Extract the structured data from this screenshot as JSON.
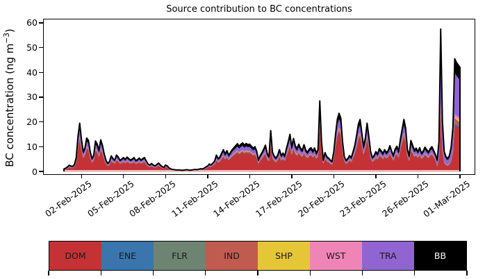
{
  "chart_data": {
    "type": "stacked_area",
    "title": "Source contribution to BC concentrations",
    "ylabel_text": "BC concentration (ng m⁻³)",
    "ylabel_parts": {
      "pre": "BC concentration (ng m",
      "sup": "−3",
      "post": ")"
    },
    "xlabel": "",
    "background_color": "#ffffff",
    "axis_color": "#000000",
    "envelope_line_color": "#000000",
    "baseline_strip_color": "#f2d7d9",
    "y_ticks": [
      0,
      10,
      20,
      30,
      40,
      50,
      60
    ],
    "ylim": [
      -1.4,
      61.7
    ],
    "grid": false,
    "x_start": "2025-01-31 18:00",
    "x_step_hours": 3,
    "x_tick_labels": [
      "02-Feb-2025",
      "05-Feb-2025",
      "08-Feb-2025",
      "11-Feb-2025",
      "14-Feb-2025",
      "17-Feb-2025",
      "20-Feb-2025",
      "23-Feb-2025",
      "26-Feb-2025",
      "01-Mar-2025"
    ],
    "x_tick_indices": [
      10,
      34,
      58,
      82,
      106,
      130,
      154,
      178,
      202,
      226
    ],
    "legend_position": "bottom-bar",
    "series_note": "Stacked bottom-to-top in listed order; each series value = fraction × total at that timestamp (fractions read from band thicknesses).",
    "series": [
      {
        "name": "DOM",
        "color": "#c43236",
        "text_color": "#1a1a1a",
        "fraction": 0.67
      },
      {
        "name": "ENE",
        "color": "#3a75ad",
        "text_color": "#1a1a1a",
        "fraction": 0.01
      },
      {
        "name": "FLR",
        "color": "#6d8472",
        "text_color": "#1a1a1a",
        "fraction": 0.015
      },
      {
        "name": "IND",
        "color": "#c05b50",
        "text_color": "#1a1a1a",
        "fraction": 0.03
      },
      {
        "name": "SHP",
        "color": "#e5c636",
        "text_color": "#1a1a1a",
        "fraction": 0.015
      },
      {
        "name": "WST",
        "color": "#ef85b6",
        "text_color": "#1a1a1a",
        "fraction": 0.025
      },
      {
        "name": "TRA",
        "color": "#9065d2",
        "text_color": "#1a1a1a",
        "fraction": 0.145
      },
      {
        "name": "BB",
        "color": "#000000",
        "text_color": "#ffffff",
        "fraction": 0.09
      }
    ],
    "fraction_overrides": [
      {
        "from_index": 213,
        "to_index": 226,
        "fractions": [
          0.42,
          0.01,
          0.015,
          0.03,
          0.015,
          0.025,
          0.365,
          0.12
        ]
      }
    ],
    "total": [
      1.0,
      1.3,
      1.8,
      2.5,
      2.2,
      2.0,
      2.8,
      5.5,
      14.0,
      19.5,
      13.0,
      8.0,
      9.5,
      13.5,
      12.5,
      8.0,
      5.2,
      6.5,
      12.3,
      11.0,
      8.5,
      12.8,
      10.5,
      7.0,
      4.5,
      3.2,
      4.0,
      6.3,
      5.2,
      4.6,
      6.6,
      5.8,
      4.5,
      5.0,
      5.6,
      4.8,
      5.8,
      5.2,
      4.6,
      5.0,
      5.6,
      4.4,
      4.8,
      5.4,
      4.6,
      5.2,
      5.6,
      4.2,
      3.0,
      2.6,
      3.2,
      2.6,
      2.2,
      2.8,
      3.4,
      2.6,
      2.0,
      1.6,
      2.6,
      2.2,
      1.4,
      1.0,
      0.8,
      0.7,
      0.6,
      0.6,
      0.6,
      0.5,
      0.5,
      0.6,
      0.7,
      0.6,
      0.5,
      0.6,
      0.7,
      0.8,
      0.7,
      0.9,
      1.1,
      1.0,
      1.3,
      1.8,
      2.2,
      3.0,
      2.6,
      3.4,
      4.2,
      6.6,
      5.2,
      5.8,
      7.4,
      8.8,
      7.0,
      8.4,
      6.6,
      7.6,
      8.8,
      9.6,
      10.4,
      11.2,
      10.2,
      11.0,
      11.5,
      10.6,
      11.3,
      10.8,
      11.0,
      10.2,
      9.4,
      10.0,
      8.2,
      4.6,
      6.4,
      7.6,
      9.0,
      10.6,
      7.2,
      6.0,
      16.5,
      7.8,
      6.2,
      5.4,
      6.6,
      8.8,
      6.4,
      7.4,
      6.2,
      9.4,
      12.0,
      15.0,
      9.8,
      13.3,
      10.4,
      9.2,
      11.0,
      9.4,
      8.6,
      10.8,
      8.6,
      7.8,
      9.0,
      9.6,
      8.2,
      9.5,
      7.4,
      8.8,
      28.5,
      12.0,
      4.6,
      7.6,
      6.0,
      5.4,
      4.6,
      4.0,
      8.0,
      15.0,
      21.0,
      23.5,
      21.5,
      12.0,
      6.0,
      4.4,
      5.2,
      6.4,
      5.6,
      8.0,
      10.5,
      14.5,
      19.0,
      21.0,
      15.5,
      10.0,
      13.5,
      19.5,
      14.0,
      8.0,
      5.6,
      6.4,
      8.0,
      7.0,
      9.2,
      8.4,
      7.2,
      8.8,
      7.6,
      8.4,
      10.4,
      8.2,
      6.4,
      9.0,
      10.2,
      8.0,
      13.0,
      17.0,
      21.0,
      17.5,
      9.0,
      6.2,
      12.5,
      10.5,
      8.6,
      9.4,
      8.0,
      9.6,
      7.4,
      8.2,
      9.8,
      8.8,
      7.8,
      9.2,
      10.0,
      8.4,
      6.8,
      4.6,
      12.0,
      57.5,
      20.0,
      8.0,
      6.0,
      5.2,
      6.5,
      10.0,
      18.0,
      45.5,
      44.0,
      43.0,
      42.0
    ]
  }
}
